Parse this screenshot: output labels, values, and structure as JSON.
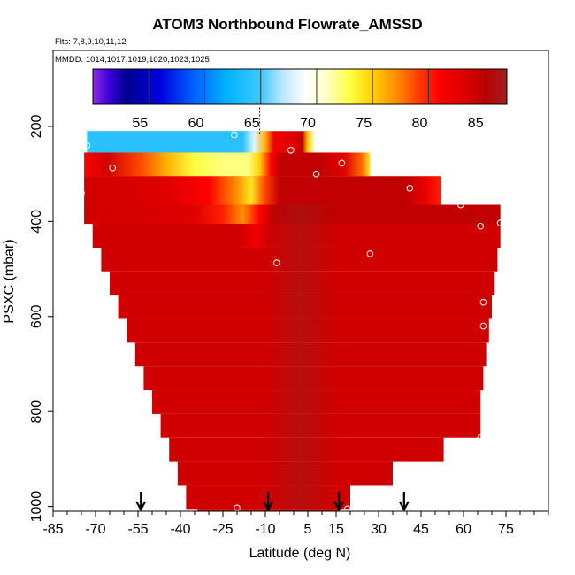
{
  "chart_data": {
    "type": "heatmap",
    "title": "ATOM3 Northbound Flowrate_AMSSD",
    "flights_label": "Flts: 7,8,9,10,11,12",
    "dates_label": "MMDD: 1014,1017,1019,1020,1023,1025",
    "xlabel": "Latitude (deg N)",
    "ylabel": "PSXC (mbar)",
    "xlim": [
      -85,
      90
    ],
    "ylim": [
      1010,
      40
    ],
    "x_ticks": [
      -85,
      -70,
      -55,
      -40,
      -25,
      -10,
      5,
      15,
      30,
      45,
      60,
      75
    ],
    "y_ticks": [
      200,
      400,
      600,
      800,
      1000
    ],
    "colorbar": {
      "range": [
        50,
        87
      ],
      "ticks": [
        55,
        60,
        65,
        70,
        75,
        80,
        85
      ],
      "stops": [
        {
          "v": 50,
          "color": "#8b2be2"
        },
        {
          "v": 51.5,
          "color": "#3a00d8"
        },
        {
          "v": 53,
          "color": "#000090"
        },
        {
          "v": 56,
          "color": "#0000e0"
        },
        {
          "v": 59,
          "color": "#0060ff"
        },
        {
          "v": 62,
          "color": "#00b4ff"
        },
        {
          "v": 65,
          "color": "#40c8ff"
        },
        {
          "v": 67,
          "color": "#bfe8ff"
        },
        {
          "v": 69,
          "color": "#ffffff"
        },
        {
          "v": 71,
          "color": "#ffffc0"
        },
        {
          "v": 73,
          "color": "#ffff40"
        },
        {
          "v": 75,
          "color": "#ffd000"
        },
        {
          "v": 77,
          "color": "#ff9000"
        },
        {
          "v": 79,
          "color": "#ff4000"
        },
        {
          "v": 81,
          "color": "#ff0000"
        },
        {
          "v": 83.5,
          "color": "#d80000"
        },
        {
          "v": 85,
          "color": "#c00000"
        },
        {
          "v": 87,
          "color": "#a01e1e"
        }
      ]
    },
    "cells": [
      {
        "lat0": -73,
        "lat1": 7.5,
        "p0": 210,
        "p1": 255,
        "value": 64
      },
      {
        "lat0": -74,
        "lat1": 8,
        "p0": 255,
        "p1": 305,
        "value": 80
      },
      {
        "lat0": -74,
        "lat1": 52,
        "p0": 305,
        "p1": 365,
        "value": 83
      },
      {
        "lat0": -74,
        "lat1": 73,
        "p0": 365,
        "p1": 405,
        "value": 84
      },
      {
        "lat0": -71,
        "lat1": 73,
        "p0": 405,
        "p1": 455,
        "value": 84
      },
      {
        "lat0": -68,
        "lat1": 72,
        "p0": 455,
        "p1": 505,
        "value": 84
      },
      {
        "lat0": -65,
        "lat1": 71,
        "p0": 505,
        "p1": 555,
        "value": 84
      },
      {
        "lat0": -62,
        "lat1": 70,
        "p0": 555,
        "p1": 605,
        "value": 84
      },
      {
        "lat0": -59,
        "lat1": 69,
        "p0": 605,
        "p1": 655,
        "value": 84
      },
      {
        "lat0": -56,
        "lat1": 68,
        "p0": 655,
        "p1": 705,
        "value": 84
      },
      {
        "lat0": -53,
        "lat1": 67,
        "p0": 705,
        "p1": 755,
        "value": 84
      },
      {
        "lat0": -50,
        "lat1": 66,
        "p0": 755,
        "p1": 805,
        "value": 84
      },
      {
        "lat0": -47,
        "lat1": 66,
        "p0": 805,
        "p1": 855,
        "value": 84
      },
      {
        "lat0": -44,
        "lat1": 53,
        "p0": 855,
        "p1": 905,
        "value": 84
      },
      {
        "lat0": -41,
        "lat1": 35,
        "p0": 905,
        "p1": 955,
        "value": 84
      },
      {
        "lat0": -38,
        "lat1": 20,
        "p0": 955,
        "p1": 1005,
        "value": 84
      },
      {
        "lat0": -34,
        "lat1": 16,
        "p0": 1005,
        "p1": 1010,
        "value": 84
      }
    ],
    "gradient_rows": [
      {
        "p0": 255,
        "p1": 305,
        "lat0": -74,
        "lat1": 27,
        "stops": [
          [
            -74,
            81
          ],
          [
            -66,
            84
          ],
          [
            -55,
            79
          ],
          [
            -45,
            76
          ],
          [
            -35,
            73
          ],
          [
            -25,
            72
          ],
          [
            -16,
            72
          ],
          [
            -12,
            75
          ],
          [
            -8,
            81
          ],
          [
            -5,
            85
          ],
          [
            8,
            85
          ],
          [
            18,
            83
          ],
          [
            24,
            78
          ],
          [
            27,
            74
          ]
        ]
      },
      {
        "p0": 305,
        "p1": 365,
        "lat0": -74,
        "lat1": 52,
        "stops": [
          [
            -74,
            84
          ],
          [
            -45,
            83
          ],
          [
            -30,
            81
          ],
          [
            -20,
            77
          ],
          [
            -15,
            74
          ],
          [
            -10,
            79
          ],
          [
            -5,
            85
          ],
          [
            40,
            85
          ],
          [
            47,
            82
          ],
          [
            52,
            80
          ]
        ]
      },
      {
        "p0": 365,
        "p1": 405,
        "lat0": -74,
        "lat1": 73,
        "stops": [
          [
            -74,
            84
          ],
          [
            -35,
            83
          ],
          [
            -25,
            80
          ],
          [
            -18,
            77
          ],
          [
            -12,
            81
          ],
          [
            -7,
            85
          ],
          [
            73,
            85
          ]
        ]
      },
      {
        "p0": 405,
        "p1": 455,
        "lat0": -71,
        "lat1": 73,
        "stops": [
          [
            -71,
            84
          ],
          [
            -20,
            84
          ],
          [
            -13,
            82
          ],
          [
            -9,
            84
          ],
          [
            73,
            84
          ]
        ]
      },
      {
        "p0": 210,
        "p1": 255,
        "lat0": -73,
        "lat1": 7.5,
        "stops": [
          [
            -73,
            64
          ],
          [
            -18,
            64
          ],
          [
            -14,
            68
          ],
          [
            -10,
            76
          ],
          [
            -7,
            82
          ],
          [
            0,
            83
          ],
          [
            3,
            85
          ],
          [
            5,
            75
          ],
          [
            7.5,
            70
          ]
        ]
      }
    ],
    "markers": [
      {
        "lat": -73,
        "p": 240
      },
      {
        "lat": -21,
        "p": 218
      },
      {
        "lat": -1,
        "p": 250
      },
      {
        "lat": -64,
        "p": 287
      },
      {
        "lat": 8,
        "p": 300
      },
      {
        "lat": 17,
        "p": 277
      },
      {
        "lat": -75,
        "p": 340
      },
      {
        "lat": 41,
        "p": 330
      },
      {
        "lat": 59,
        "p": 365
      },
      {
        "lat": 66,
        "p": 410
      },
      {
        "lat": 73,
        "p": 403
      },
      {
        "lat": -6,
        "p": 487
      },
      {
        "lat": 27,
        "p": 468
      },
      {
        "lat": 67,
        "p": 570
      },
      {
        "lat": 67,
        "p": 620
      },
      {
        "lat": 66,
        "p": 855
      },
      {
        "lat": -20,
        "p": 1003
      },
      {
        "lat": 19,
        "p": 1005
      }
    ],
    "flight_arrows": [
      -54,
      -9,
      16,
      39
    ]
  }
}
